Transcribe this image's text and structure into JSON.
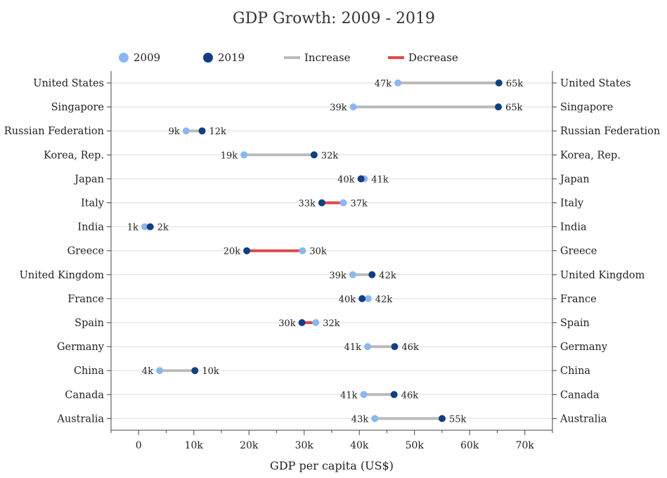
{
  "chart_data": {
    "type": "dumbbell",
    "title": "GDP Growth: 2009 - 2019",
    "xlabel": "GDP per capita (US$)",
    "ylabel": "",
    "xlim": [
      -5000,
      75000
    ],
    "xticks": [
      0,
      10000,
      20000,
      30000,
      40000,
      50000,
      60000,
      70000
    ],
    "xtick_labels": [
      "0",
      "10k",
      "20k",
      "30k",
      "40k",
      "50k",
      "60k",
      "70k"
    ],
    "legend": [
      {
        "name": "2009",
        "kind": "dot",
        "color": "#8cb7ee"
      },
      {
        "name": "2019",
        "kind": "dot",
        "color": "#123e84"
      },
      {
        "name": "Increase",
        "kind": "line",
        "color": "#bbbbbb"
      },
      {
        "name": "Decrease",
        "kind": "line",
        "color": "#e04848"
      }
    ],
    "colors": {
      "y2009": "#8cb7ee",
      "y2019": "#123e84",
      "increase": "#bbbbbb",
      "decrease": "#e04848",
      "grid": "#dddddd"
    },
    "rows": [
      {
        "country": "United States",
        "v2009": 47000,
        "v2019": 65300,
        "l2009": "47k",
        "l2019": "65k"
      },
      {
        "country": "Singapore",
        "v2009": 38900,
        "v2019": 65200,
        "l2009": "39k",
        "l2019": "65k"
      },
      {
        "country": "Russian Federation",
        "v2009": 8600,
        "v2019": 11500,
        "l2009": "9k",
        "l2019": "12k"
      },
      {
        "country": "Korea, Rep.",
        "v2009": 19100,
        "v2019": 31800,
        "l2009": "19k",
        "l2019": "32k"
      },
      {
        "country": "Japan",
        "v2009": 40900,
        "v2019": 40300,
        "l2009": "41k",
        "l2019": "40k"
      },
      {
        "country": "Italy",
        "v2009": 37100,
        "v2019": 33200,
        "l2009": "37k",
        "l2019": "33k"
      },
      {
        "country": "India",
        "v2009": 1100,
        "v2019": 2100,
        "l2009": "1k",
        "l2019": "2k"
      },
      {
        "country": "Greece",
        "v2009": 29700,
        "v2019": 19600,
        "l2009": "30k",
        "l2019": "20k"
      },
      {
        "country": "United Kingdom",
        "v2009": 38800,
        "v2019": 42300,
        "l2009": "39k",
        "l2019": "42k"
      },
      {
        "country": "France",
        "v2009": 41600,
        "v2019": 40500,
        "l2009": "42k",
        "l2019": "40k"
      },
      {
        "country": "Spain",
        "v2009": 32100,
        "v2019": 29600,
        "l2009": "32k",
        "l2019": "30k"
      },
      {
        "country": "Germany",
        "v2009": 41500,
        "v2019": 46400,
        "l2009": "41k",
        "l2019": "46k"
      },
      {
        "country": "China",
        "v2009": 3800,
        "v2019": 10200,
        "l2009": "4k",
        "l2019": "10k"
      },
      {
        "country": "Canada",
        "v2009": 40800,
        "v2019": 46300,
        "l2009": "41k",
        "l2019": "46k"
      },
      {
        "country": "Australia",
        "v2009": 42800,
        "v2019": 55000,
        "l2009": "43k",
        "l2019": "55k"
      }
    ]
  }
}
